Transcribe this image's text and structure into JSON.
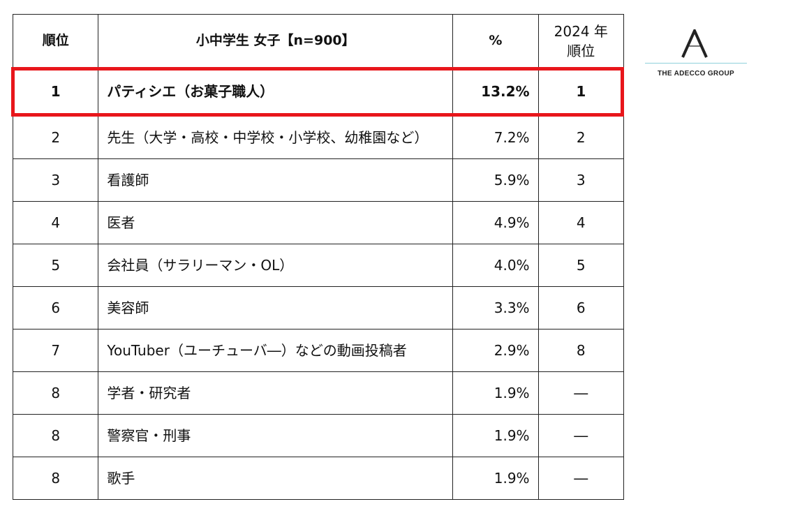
{
  "table": {
    "headers": {
      "rank": "順位",
      "job": "小中学生 女子【n=900】",
      "percent": "%",
      "prev_rank_line1": "2024 年",
      "prev_rank_line2": "順位"
    },
    "rows": [
      {
        "rank": "1",
        "job": "パティシエ（お菓子職人）",
        "percent": "13.2%",
        "prev_rank": "1"
      },
      {
        "rank": "2",
        "job": "先生（大学・高校・中学校・小学校、幼稚園など）",
        "percent": "7.2%",
        "prev_rank": "2"
      },
      {
        "rank": "3",
        "job": "看護師",
        "percent": "5.9%",
        "prev_rank": "3"
      },
      {
        "rank": "4",
        "job": "医者",
        "percent": "4.9%",
        "prev_rank": "4"
      },
      {
        "rank": "5",
        "job": "会社員（サラリーマン・OL）",
        "percent": "4.0%",
        "prev_rank": "5"
      },
      {
        "rank": "6",
        "job": "美容師",
        "percent": "3.3%",
        "prev_rank": "6"
      },
      {
        "rank": "7",
        "job": "YouTuber（ユーチューバ―）などの動画投稿者",
        "percent": "2.9%",
        "prev_rank": "8"
      },
      {
        "rank": "8",
        "job": "学者・研究者",
        "percent": "1.9%",
        "prev_rank": "―"
      },
      {
        "rank": "8",
        "job": "警察官・刑事",
        "percent": "1.9%",
        "prev_rank": "―"
      },
      {
        "rank": "8",
        "job": "歌手",
        "percent": "1.9%",
        "prev_rank": "―"
      }
    ]
  },
  "highlight": {
    "color": "#e8161b"
  },
  "logo": {
    "icon": "adecco-a-mark-icon",
    "text": "THE ADECCO GROUP"
  }
}
